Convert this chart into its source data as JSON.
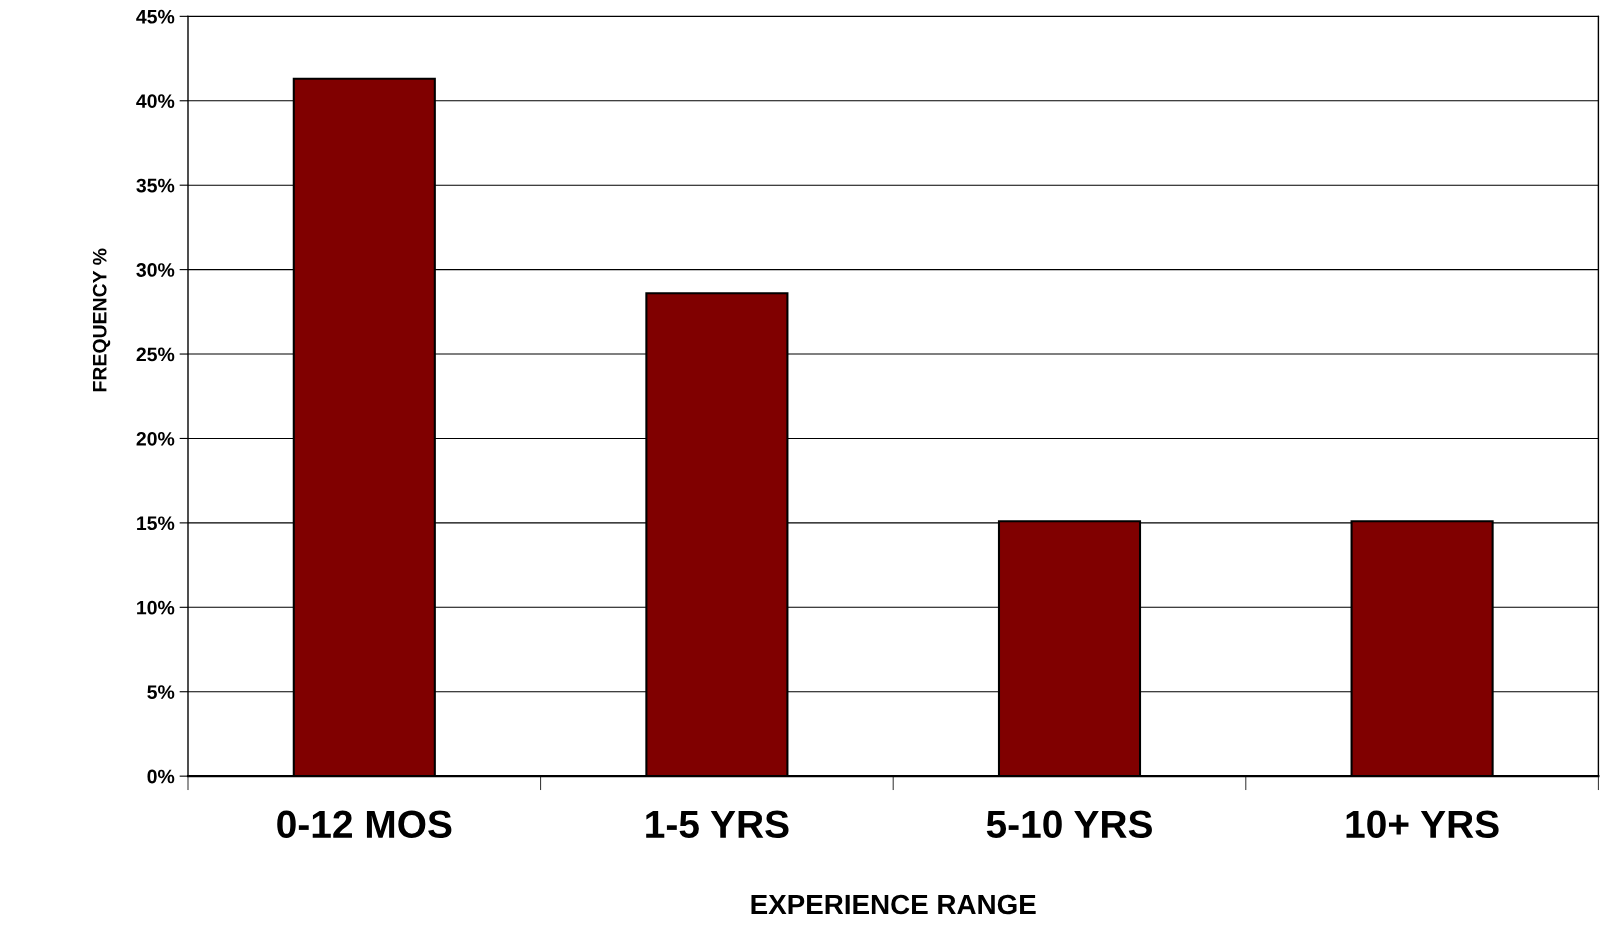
{
  "chart_data": {
    "type": "bar",
    "xlabel": "EXPERIENCE RANGE",
    "ylabel": "FREQUENCY %",
    "categories": [
      "0-12 MOS",
      "1-5 YRS",
      "5-10 YRS",
      "10+ YRS"
    ],
    "values": [
      41.3,
      28.6,
      15.1,
      15.1
    ],
    "color": "#800000",
    "ylim": [
      0,
      45
    ],
    "yticks": [
      {
        "value": 0,
        "label": "0%"
      },
      {
        "value": 5,
        "label": "5%"
      },
      {
        "value": 10,
        "label": "10%"
      },
      {
        "value": 15,
        "label": "15%"
      },
      {
        "value": 20,
        "label": "20%"
      },
      {
        "value": 25,
        "label": "25%"
      },
      {
        "value": 30,
        "label": "30%"
      },
      {
        "value": 35,
        "label": "35%"
      },
      {
        "value": 40,
        "label": "40%"
      },
      {
        "value": 45,
        "label": "45%"
      }
    ],
    "grid": "y",
    "legend": false
  }
}
